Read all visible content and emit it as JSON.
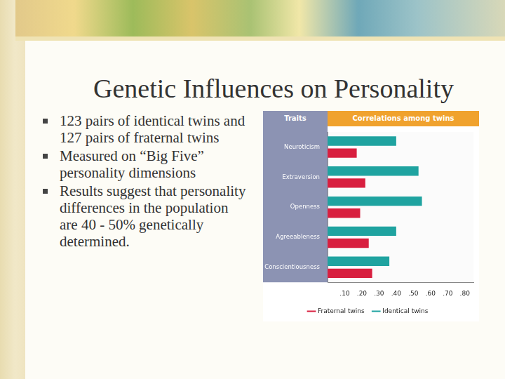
{
  "slide": {
    "title": "Genetic Influences on Personality",
    "bullets": [
      "123 pairs of identical twins and 127 pairs of fraternal twins",
      "Measured on “Big Five” personality dimensions",
      "Results suggest that personality differences in the population are 40 - 50% genetically determined."
    ]
  },
  "chart_data": {
    "type": "bar",
    "orientation": "horizontal",
    "title": "Correlations among twins",
    "y_label": "Traits",
    "categories": [
      "Neuroticism",
      "Extraversion",
      "Openness",
      "Agreeableness",
      "Conscientiousness"
    ],
    "series": [
      {
        "name": "Identical twins",
        "color": "#1fa3a0",
        "values": [
          0.4,
          0.53,
          0.55,
          0.4,
          0.36
        ]
      },
      {
        "name": "Fraternal twins",
        "color": "#d81f3f",
        "values": [
          0.17,
          0.22,
          0.19,
          0.24,
          0.26
        ]
      }
    ],
    "xlim": [
      0,
      0.85
    ],
    "xticks": [
      {
        "value": 0.1,
        "label": ".10"
      },
      {
        "value": 0.2,
        "label": ".20"
      },
      {
        "value": 0.3,
        "label": ".30"
      },
      {
        "value": 0.4,
        "label": ".40"
      },
      {
        "value": 0.5,
        "label": ".50"
      },
      {
        "value": 0.6,
        "label": ".60"
      },
      {
        "value": 0.7,
        "label": ".70"
      },
      {
        "value": 0.8,
        "label": ".80"
      }
    ],
    "grid": false,
    "legend": "bottom"
  }
}
